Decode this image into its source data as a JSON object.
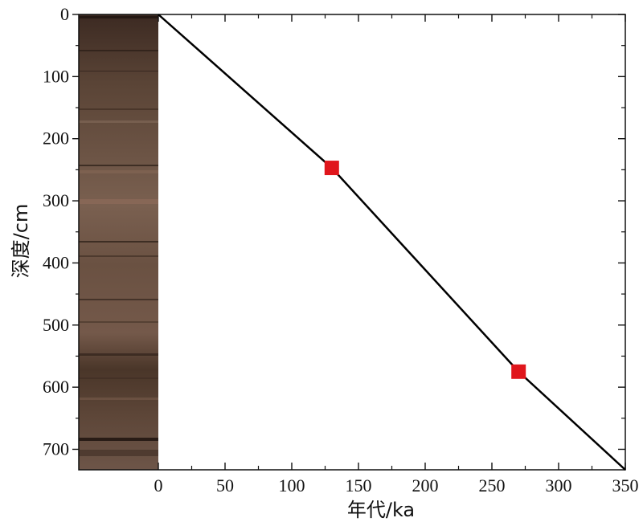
{
  "chart_data": {
    "type": "line",
    "xlabel": "年代/ka",
    "ylabel": "深度/cm",
    "xlim": [
      0,
      350
    ],
    "ylim": [
      0,
      733
    ],
    "y_inverted": true,
    "x_ticks": [
      "0",
      "50",
      "100",
      "150",
      "200",
      "250",
      "300",
      "350"
    ],
    "y_ticks": [
      "0",
      "100",
      "200",
      "300",
      "400",
      "500",
      "600",
      "700"
    ],
    "x_tick_values": [
      0,
      50,
      100,
      150,
      200,
      250,
      300,
      350
    ],
    "y_tick_values": [
      0,
      100,
      200,
      300,
      400,
      500,
      600,
      700
    ],
    "series": [
      {
        "type": "line",
        "color": "#000000",
        "points": [
          [
            0,
            0
          ],
          [
            130,
            247
          ],
          [
            270,
            575
          ],
          [
            350,
            733
          ]
        ]
      },
      {
        "type": "marker",
        "marker": "square",
        "color": "#e0161c",
        "points": [
          [
            130,
            247
          ],
          [
            270,
            575
          ]
        ]
      }
    ],
    "core_image": "sediment-core-photo",
    "grid": false
  }
}
